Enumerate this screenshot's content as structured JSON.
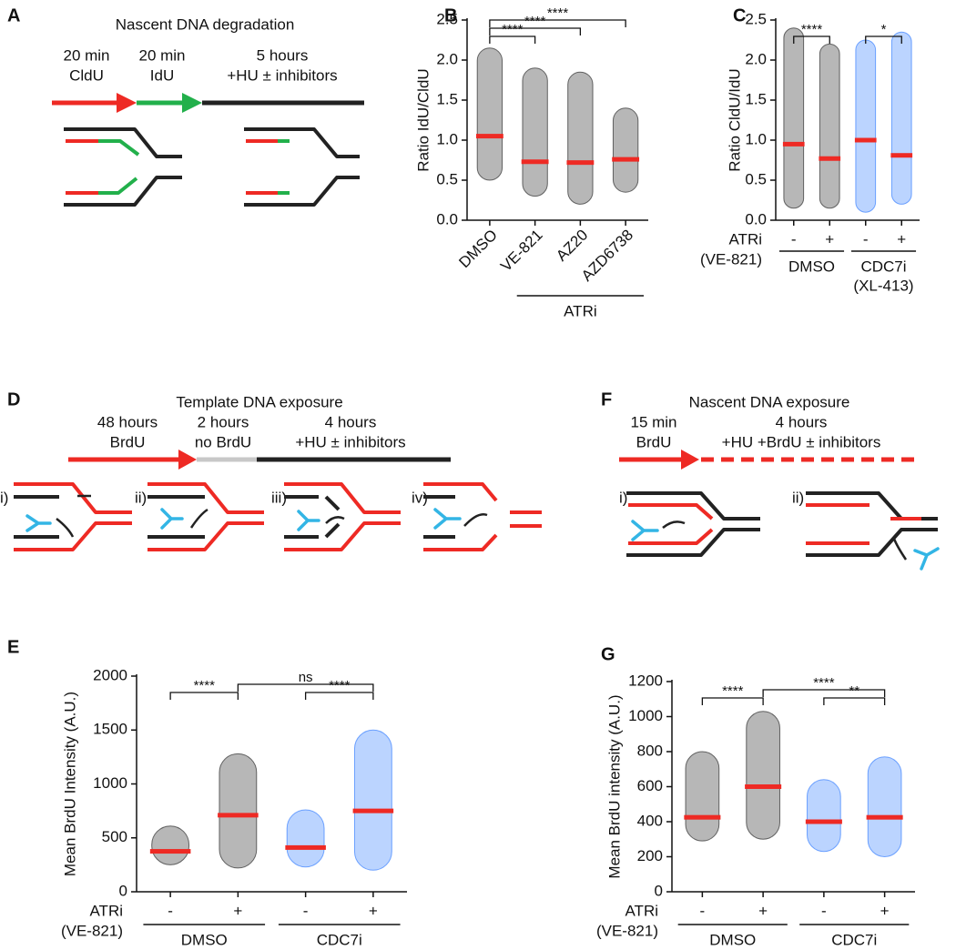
{
  "diagrams": {
    "A": {
      "label": "A",
      "title": "Nascent DNA degradation",
      "steps": [
        [
          "20 min",
          "CldU"
        ],
        [
          "20 min",
          "IdU"
        ],
        [
          "5 hours",
          "+HU ± inhibitors"
        ]
      ]
    },
    "D": {
      "label": "D",
      "title": "Template DNA exposure",
      "steps": [
        [
          "48 hours",
          "BrdU"
        ],
        [
          "2 hours",
          "no BrdU"
        ],
        [
          "4 hours",
          "+HU ± inhibitors"
        ]
      ],
      "substeps": [
        "i)",
        "ii)",
        "iii)",
        "iv)"
      ]
    },
    "F": {
      "label": "F",
      "title": "Nascent DNA exposure",
      "steps": [
        [
          "15 min",
          "BrdU"
        ],
        [
          "4 hours",
          "+HU +BrdU ± inhibitors"
        ]
      ],
      "substeps": [
        "i)",
        "ii)"
      ]
    }
  },
  "chart_data": [
    {
      "type": "dot",
      "label": "B",
      "ylabel": "Ratio IdU/CldU",
      "categories": [
        "DMSO",
        "VE-821",
        "AZ20",
        "AZD6738"
      ],
      "values": [
        1.05,
        0.73,
        0.72,
        0.76
      ],
      "ranges": [
        [
          0.5,
          2.15
        ],
        [
          0.3,
          1.9
        ],
        [
          0.2,
          1.85
        ],
        [
          0.35,
          1.4
        ]
      ],
      "colors": [
        "#111111",
        "#111111",
        "#111111",
        "#111111"
      ],
      "median_color": "#ee2a24",
      "ylim": [
        0,
        2.5
      ],
      "yticks": [
        {
          "value": 0,
          "label": "0.0"
        },
        0.5,
        {
          "value": 1,
          "label": "1.0"
        },
        1.5,
        {
          "value": 2,
          "label": "2.0"
        },
        2.5
      ],
      "brackets": [
        {
          "from": 0,
          "to": 1,
          "text": "****"
        },
        {
          "from": 0,
          "to": 2,
          "text": "****"
        },
        {
          "from": 0,
          "to": 3,
          "text": "****"
        }
      ],
      "groups": [
        {
          "from": 1,
          "to": 3,
          "lines": [
            "ATRi"
          ]
        }
      ]
    },
    {
      "type": "dot",
      "label": "C",
      "ylabel": "Ratio CldU/IdU",
      "categories": [
        "-",
        "+",
        "-",
        "+"
      ],
      "row_label": [
        "ATRi",
        "(VE-821)"
      ],
      "values": [
        0.95,
        0.77,
        1.0,
        0.81
      ],
      "ranges": [
        [
          0.15,
          2.4
        ],
        [
          0.15,
          2.2
        ],
        [
          0.1,
          2.25
        ],
        [
          0.2,
          2.35
        ]
      ],
      "colors": [
        "#111111",
        "#111111",
        "#1f6fff",
        "#1f6fff"
      ],
      "median_color": "#ee2a24",
      "ylim": [
        0,
        2.5
      ],
      "yticks": [
        {
          "value": 0,
          "label": "0.0"
        },
        0.5,
        {
          "value": 1,
          "label": "1.0"
        },
        1.5,
        {
          "value": 2,
          "label": "2.0"
        },
        2.5
      ],
      "brackets": [
        {
          "from": 0,
          "to": 1,
          "text": "****"
        },
        {
          "from": 2,
          "to": 3,
          "text": "*"
        }
      ],
      "groups": [
        {
          "from": 0,
          "to": 1,
          "lines": [
            "DMSO"
          ]
        },
        {
          "from": 2,
          "to": 3,
          "lines": [
            "CDC7i",
            "(XL-413)"
          ]
        }
      ]
    },
    {
      "type": "dot",
      "label": "E",
      "ylabel": "Mean BrdU Intensity (A.U.)",
      "categories": [
        "-",
        "+",
        "-",
        "+"
      ],
      "row_label": [
        "ATRi",
        "(VE-821)"
      ],
      "values": [
        375,
        710,
        410,
        750
      ],
      "ranges": [
        [
          250,
          610
        ],
        [
          220,
          1280
        ],
        [
          230,
          760
        ],
        [
          200,
          1500
        ]
      ],
      "colors": [
        "#111111",
        "#111111",
        "#1f6fff",
        "#1f6fff"
      ],
      "median_color": "#ee2a24",
      "ylim": [
        0,
        2000
      ],
      "yticks": [
        0,
        500,
        1000,
        1500,
        2000
      ],
      "brackets": [
        {
          "from": 0,
          "to": 1,
          "text": "****"
        },
        {
          "from": 1,
          "to": 3,
          "text": "ns"
        },
        {
          "from": 2,
          "to": 3,
          "text": "****"
        }
      ],
      "groups": [
        {
          "from": 0,
          "to": 1,
          "lines": [
            "DMSO"
          ]
        },
        {
          "from": 2,
          "to": 3,
          "lines": [
            "CDC7i"
          ]
        }
      ]
    },
    {
      "type": "dot",
      "label": "G",
      "ylabel": "Mean BrdU intensity (A.U.)",
      "categories": [
        "-",
        "+",
        "-",
        "+"
      ],
      "row_label": [
        "ATRi",
        "(VE-821)"
      ],
      "values": [
        425,
        600,
        400,
        425
      ],
      "ranges": [
        [
          290,
          800
        ],
        [
          300,
          1030
        ],
        [
          230,
          640
        ],
        [
          200,
          770
        ]
      ],
      "colors": [
        "#111111",
        "#111111",
        "#1f6fff",
        "#1f6fff"
      ],
      "median_color": "#ee2a24",
      "ylim": [
        0,
        1200
      ],
      "yticks": [
        0,
        200,
        400,
        600,
        800,
        1000,
        1200
      ],
      "brackets": [
        {
          "from": 0,
          "to": 1,
          "text": "****"
        },
        {
          "from": 1,
          "to": 3,
          "text": "****"
        },
        {
          "from": 2,
          "to": 3,
          "text": "**"
        }
      ],
      "groups": [
        {
          "from": 0,
          "to": 1,
          "lines": [
            "DMSO"
          ]
        },
        {
          "from": 2,
          "to": 3,
          "lines": [
            "CDC7i"
          ]
        }
      ]
    }
  ]
}
